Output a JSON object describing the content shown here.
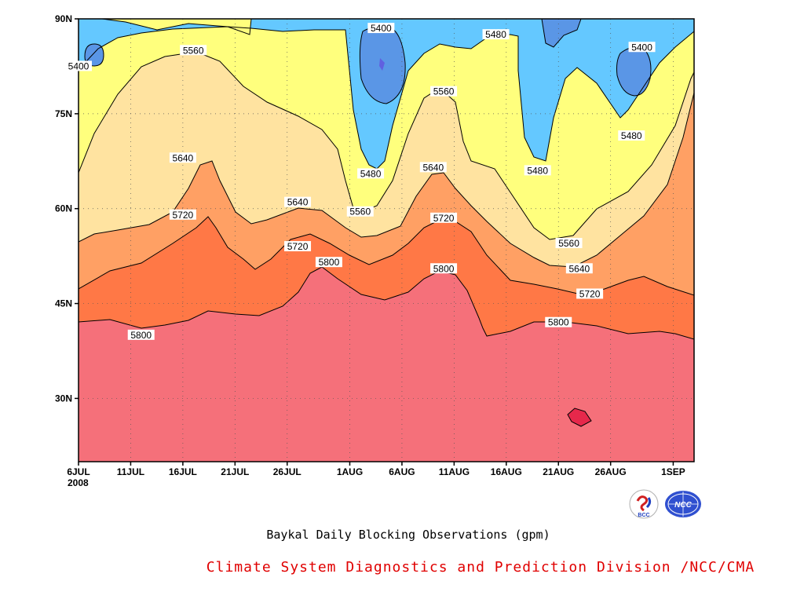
{
  "chart_data": {
    "type": "contour",
    "title": "Baykal Daily Blocking Observations (gpm)",
    "y_tick_labels": [
      "90N",
      "75N",
      "60N",
      "45N",
      "30N"
    ],
    "x_tick_labels": [
      "6JUL",
      "11JUL",
      "16JUL",
      "21JUL",
      "26JUL",
      "1AUG",
      "6AUG",
      "11AUG",
      "16AUG",
      "21AUG",
      "26AUG",
      "1SEP"
    ],
    "x_year_label": "2008",
    "xlim": [
      "2008-07-06",
      "2008-09-03"
    ],
    "ylim_deg_north": [
      20,
      90
    ],
    "contour_levels_gpm": [
      5400,
      5480,
      5560,
      5640,
      5720,
      5800
    ],
    "fill_colors": {
      "below_5400": "#5a96e6",
      "5400_5480": "#64c8ff",
      "5480_5560": "#ffff7d",
      "5560_5640": "#ffe3a0",
      "5640_5720": "#ffa064",
      "5720_5800": "#ff7846",
      "above_5800": "#f5707a",
      "above_5880": "#e6284b",
      "lowest_pocket": "#6060e0"
    },
    "contour_labels": [
      {
        "value": "5400",
        "date": "2008-07-06",
        "lat": 82.5
      },
      {
        "value": "5400",
        "date": "2008-08-04",
        "lat": 88.5
      },
      {
        "value": "5400",
        "date": "2008-08-29",
        "lat": 85.5
      },
      {
        "value": "5480",
        "date": "2008-08-15",
        "lat": 87.5
      },
      {
        "value": "5480",
        "date": "2008-08-03",
        "lat": 65.5
      },
      {
        "value": "5480",
        "date": "2008-08-19",
        "lat": 66.0
      },
      {
        "value": "5480",
        "date": "2008-08-28",
        "lat": 71.5
      },
      {
        "value": "5560",
        "date": "2008-07-17",
        "lat": 85.0
      },
      {
        "value": "5560",
        "date": "2008-08-10",
        "lat": 78.5
      },
      {
        "value": "5560",
        "date": "2008-08-02",
        "lat": 59.5
      },
      {
        "value": "5560",
        "date": "2008-08-22",
        "lat": 54.5
      },
      {
        "value": "5640",
        "date": "2008-07-16",
        "lat": 68.0
      },
      {
        "value": "5640",
        "date": "2008-08-09",
        "lat": 66.5
      },
      {
        "value": "5640",
        "date": "2008-07-27",
        "lat": 61.0
      },
      {
        "value": "5640",
        "date": "2008-08-23",
        "lat": 50.5
      },
      {
        "value": "5720",
        "date": "2008-07-16",
        "lat": 59.0
      },
      {
        "value": "5720",
        "date": "2008-07-27",
        "lat": 54.0
      },
      {
        "value": "5720",
        "date": "2008-08-10",
        "lat": 58.5
      },
      {
        "value": "5720",
        "date": "2008-08-24",
        "lat": 46.5
      },
      {
        "value": "5800",
        "date": "2008-07-30",
        "lat": 51.5
      },
      {
        "value": "5800",
        "date": "2008-08-10",
        "lat": 50.5
      },
      {
        "value": "5800",
        "date": "2008-07-12",
        "lat": 40.0
      },
      {
        "value": "5800",
        "date": "2008-08-21",
        "lat": 42.0
      }
    ]
  },
  "footer": {
    "caption": "Baykal Daily Blocking Observations (gpm)",
    "organization": "Climate System Diagnostics and Prediction Division /NCC/CMA",
    "organization_color": "#e00000",
    "logo_left_text": "BCC",
    "logo_right_text": "NCC"
  }
}
